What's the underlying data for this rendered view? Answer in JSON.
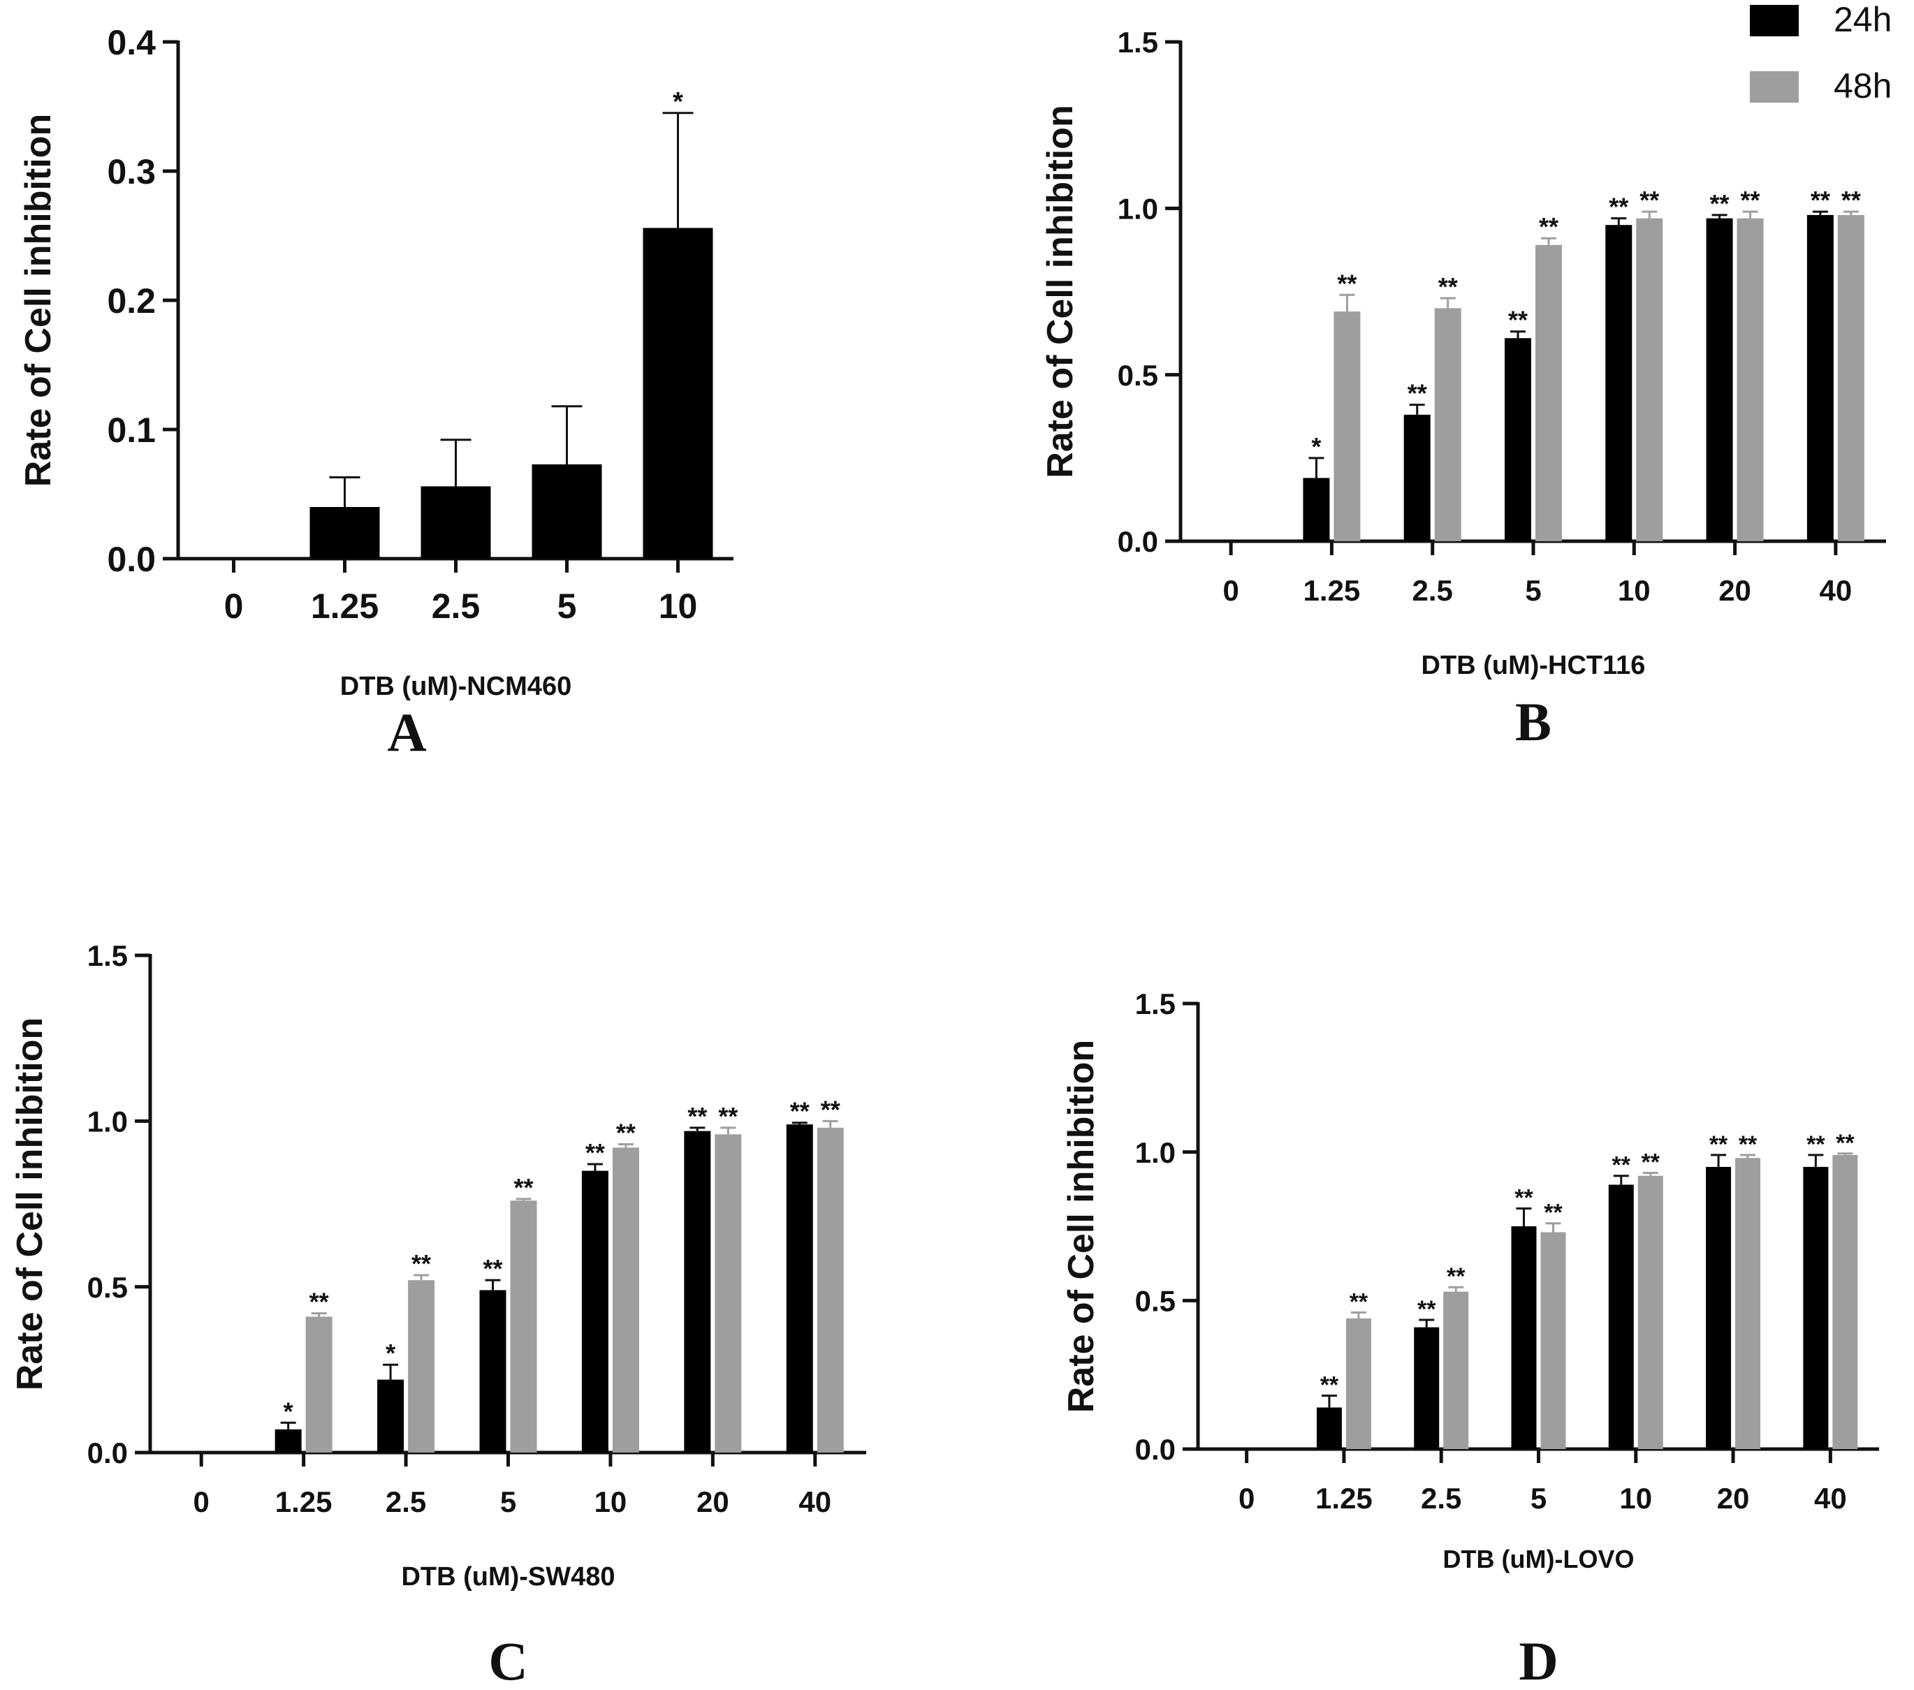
{
  "legend": [
    {
      "label": "24h",
      "color": "#000000"
    },
    {
      "label": "48h",
      "color": "#9e9e9e"
    }
  ],
  "chart_data": [
    {
      "type": "bar",
      "panel": "A",
      "categories": [
        "0",
        "1.25",
        "2.5",
        "5",
        "10"
      ],
      "series": [
        {
          "name": "24h",
          "color": "#000000",
          "values": [
            0,
            0.04,
            0.056,
            0.073,
            0.256
          ],
          "errors": [
            0,
            0.023,
            0.036,
            0.045,
            0.089
          ],
          "sig": [
            "",
            "",
            "",
            "",
            "*"
          ]
        }
      ],
      "xlabel": "DTB (uM)-NCM460",
      "ylabel": "Rate of Cell inhibition",
      "ylim": [
        0,
        0.4
      ],
      "yticks": [
        "0.0",
        "0.1",
        "0.2",
        "0.3",
        "0.4"
      ],
      "legend": false
    },
    {
      "type": "bar",
      "panel": "B",
      "categories": [
        "0",
        "1.25",
        "2.5",
        "5",
        "10",
        "20",
        "40"
      ],
      "series": [
        {
          "name": "24h",
          "color": "#000000",
          "values": [
            0,
            0.19,
            0.38,
            0.61,
            0.95,
            0.97,
            0.98
          ],
          "errors": [
            0,
            0.06,
            0.03,
            0.02,
            0.02,
            0.01,
            0.01
          ],
          "sig": [
            "",
            "*",
            "**",
            "**",
            "**",
            "**",
            "**"
          ]
        },
        {
          "name": "48h",
          "color": "#9e9e9e",
          "values": [
            0,
            0.69,
            0.7,
            0.89,
            0.97,
            0.97,
            0.98
          ],
          "errors": [
            0,
            0.05,
            0.03,
            0.02,
            0.02,
            0.02,
            0.01
          ],
          "sig": [
            "",
            "**",
            "**",
            "**",
            "**",
            "**",
            "**"
          ]
        }
      ],
      "xlabel": "DTB (uM)-HCT116",
      "ylabel": "Rate of Cell inhibition",
      "ylim": [
        0,
        1.5
      ],
      "yticks": [
        "0.0",
        "0.5",
        "1.0",
        "1.5"
      ],
      "legend": true
    },
    {
      "type": "bar",
      "panel": "C",
      "categories": [
        "0",
        "1.25",
        "2.5",
        "5",
        "10",
        "20",
        "40"
      ],
      "series": [
        {
          "name": "24h",
          "color": "#000000",
          "values": [
            0,
            0.07,
            0.22,
            0.49,
            0.85,
            0.97,
            0.99
          ],
          "errors": [
            0,
            0.02,
            0.045,
            0.03,
            0.02,
            0.01,
            0.005
          ],
          "sig": [
            "",
            "*",
            "*",
            "**",
            "**",
            "**",
            "**"
          ]
        },
        {
          "name": "48h",
          "color": "#9e9e9e",
          "values": [
            0,
            0.41,
            0.52,
            0.76,
            0.92,
            0.96,
            0.98
          ],
          "errors": [
            0,
            0.01,
            0.015,
            0.005,
            0.01,
            0.02,
            0.02
          ],
          "sig": [
            "",
            "**",
            "**",
            "**",
            "**",
            "**",
            "**"
          ]
        }
      ],
      "xlabel": "DTB (uM)-SW480",
      "ylabel": "Rate of Cell inhibition",
      "ylim": [
        0,
        1.5
      ],
      "yticks": [
        "0.0",
        "0.5",
        "1.0",
        "1.5"
      ],
      "legend": false
    },
    {
      "type": "bar",
      "panel": "D",
      "categories": [
        "0",
        "1.25",
        "2.5",
        "5",
        "10",
        "20",
        "40"
      ],
      "series": [
        {
          "name": "24h",
          "color": "#000000",
          "values": [
            0,
            0.14,
            0.41,
            0.75,
            0.89,
            0.95,
            0.95
          ],
          "errors": [
            0,
            0.04,
            0.025,
            0.06,
            0.03,
            0.04,
            0.04
          ],
          "sig": [
            "",
            "**",
            "**",
            "**",
            "**",
            "**",
            "**"
          ]
        },
        {
          "name": "48h",
          "color": "#9e9e9e",
          "values": [
            0,
            0.44,
            0.53,
            0.73,
            0.92,
            0.98,
            0.99
          ],
          "errors": [
            0,
            0.02,
            0.015,
            0.03,
            0.01,
            0.01,
            0.005
          ],
          "sig": [
            "",
            "**",
            "**",
            "**",
            "**",
            "**",
            "**"
          ]
        }
      ],
      "xlabel": "DTB (uM)-LOVO",
      "ylabel": "Rate of Cell inhibition",
      "ylim": [
        0,
        1.5
      ],
      "yticks": [
        "0.0",
        "0.5",
        "1.0",
        "1.5"
      ],
      "legend": false
    }
  ]
}
